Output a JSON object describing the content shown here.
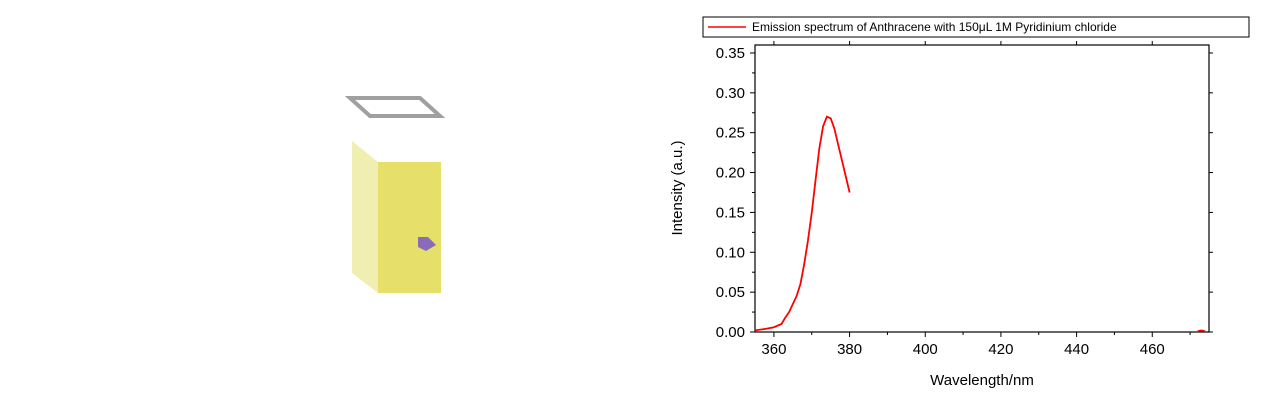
{
  "chart_data": {
    "type": "line",
    "title": "",
    "xlabel": "Wavelength/nm",
    "ylabel": "Intensity (a.u.)",
    "xlim": [
      355,
      475
    ],
    "ylim": [
      0,
      0.36
    ],
    "xticks": [
      360,
      380,
      400,
      420,
      440,
      460
    ],
    "yticks": [
      0.0,
      0.05,
      0.1,
      0.15,
      0.2,
      0.25,
      0.3,
      0.35
    ],
    "xtick_labels": [
      "360",
      "380",
      "400",
      "420",
      "440",
      "460"
    ],
    "ytick_labels": [
      "0.00",
      "0.05",
      "0.10",
      "0.15",
      "0.20",
      "0.25",
      "0.30",
      "0.35"
    ],
    "grid": false,
    "legend_position": "top",
    "series": [
      {
        "name": "Emission spectrum of Anthracene with 150μL 1M Pyridinium chloride",
        "color": "#ff0000",
        "segments": [
          {
            "x": [
              355,
              358,
              360,
              362,
              363,
              364,
              365,
              366,
              367,
              368,
              369,
              370,
              371,
              372,
              373,
              374,
              375,
              376,
              377,
              378,
              379,
              380
            ],
            "y": [
              0.002,
              0.004,
              0.006,
              0.01,
              0.018,
              0.025,
              0.035,
              0.045,
              0.06,
              0.085,
              0.115,
              0.15,
              0.19,
              0.23,
              0.258,
              0.27,
              0.268,
              0.255,
              0.235,
              0.215,
              0.195,
              0.175
            ]
          },
          {
            "x": [
              472,
              473,
              474
            ],
            "y": [
              0.001,
              0.002,
              0.001
            ]
          }
        ]
      }
    ]
  },
  "illustration": {
    "cuvette_liquid_color": "#e6e06a",
    "cuvette_side_color": "#f0eeb0",
    "cap_stroke_color": "#a0a0a0",
    "arrow_color": "#8a6bb8"
  }
}
